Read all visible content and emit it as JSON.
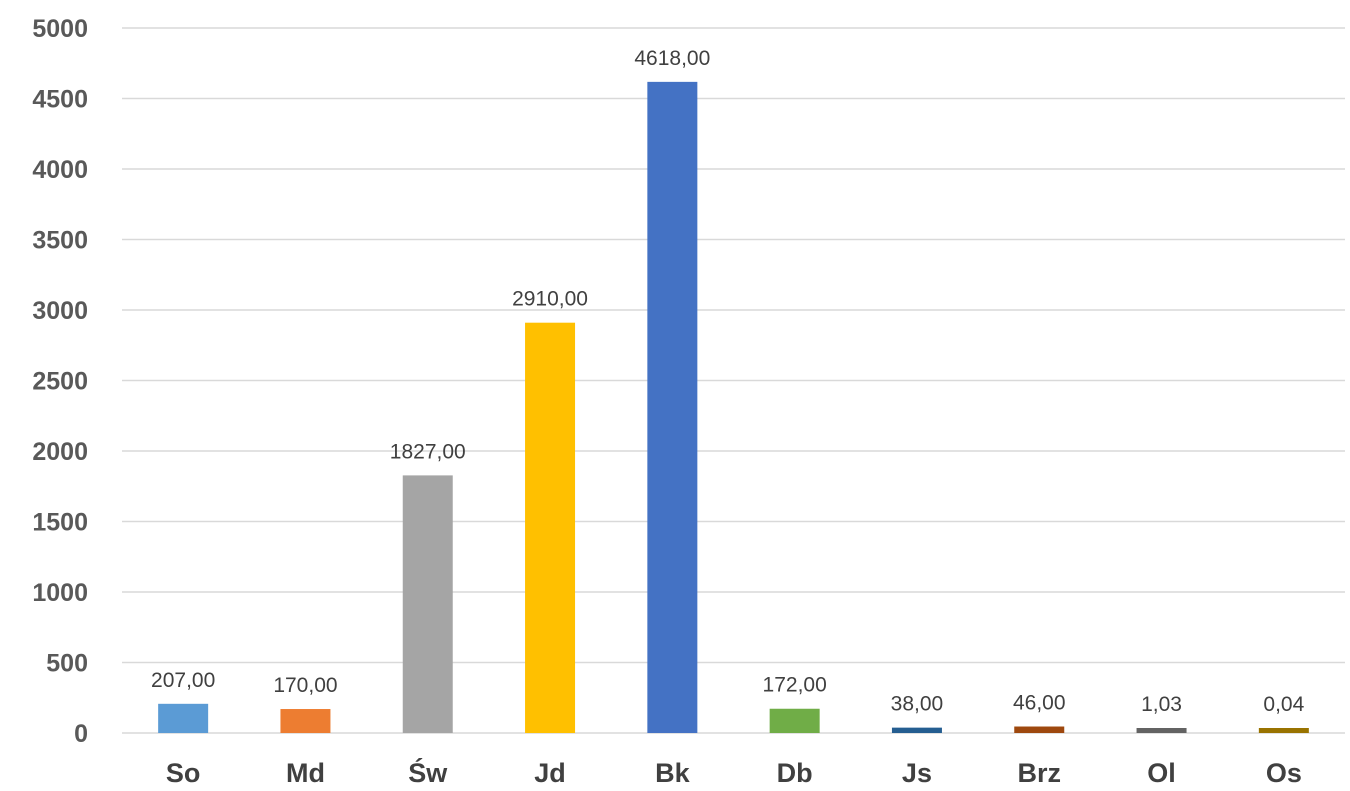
{
  "chart_data": {
    "type": "bar",
    "title": "",
    "xlabel": "",
    "ylabel": "",
    "ylim": [
      0,
      5000
    ],
    "yticks": [
      "0",
      "500",
      "1000",
      "1500",
      "2000",
      "2500",
      "3000",
      "3500",
      "4000",
      "4500",
      "5000"
    ],
    "grid": true,
    "legend": "none",
    "categories": [
      "So",
      "Md",
      "Św",
      "Jd",
      "Bk",
      "Db",
      "Js",
      "Brz",
      "Ol",
      "Os"
    ],
    "values": [
      207,
      170,
      1827,
      2910,
      4618,
      172,
      38,
      46,
      1.03,
      0.04
    ],
    "data_labels": [
      "207,00",
      "170,00",
      "1827,00",
      "2910,00",
      "4618,00",
      "172,00",
      "38,00",
      "46,00",
      "1,03",
      "0,04"
    ],
    "colors": [
      "#5B9BD5",
      "#ED7D31",
      "#A5A5A5",
      "#FFC000",
      "#4472C4",
      "#70AD47",
      "#255E91",
      "#9E480E",
      "#636363",
      "#997300"
    ]
  }
}
